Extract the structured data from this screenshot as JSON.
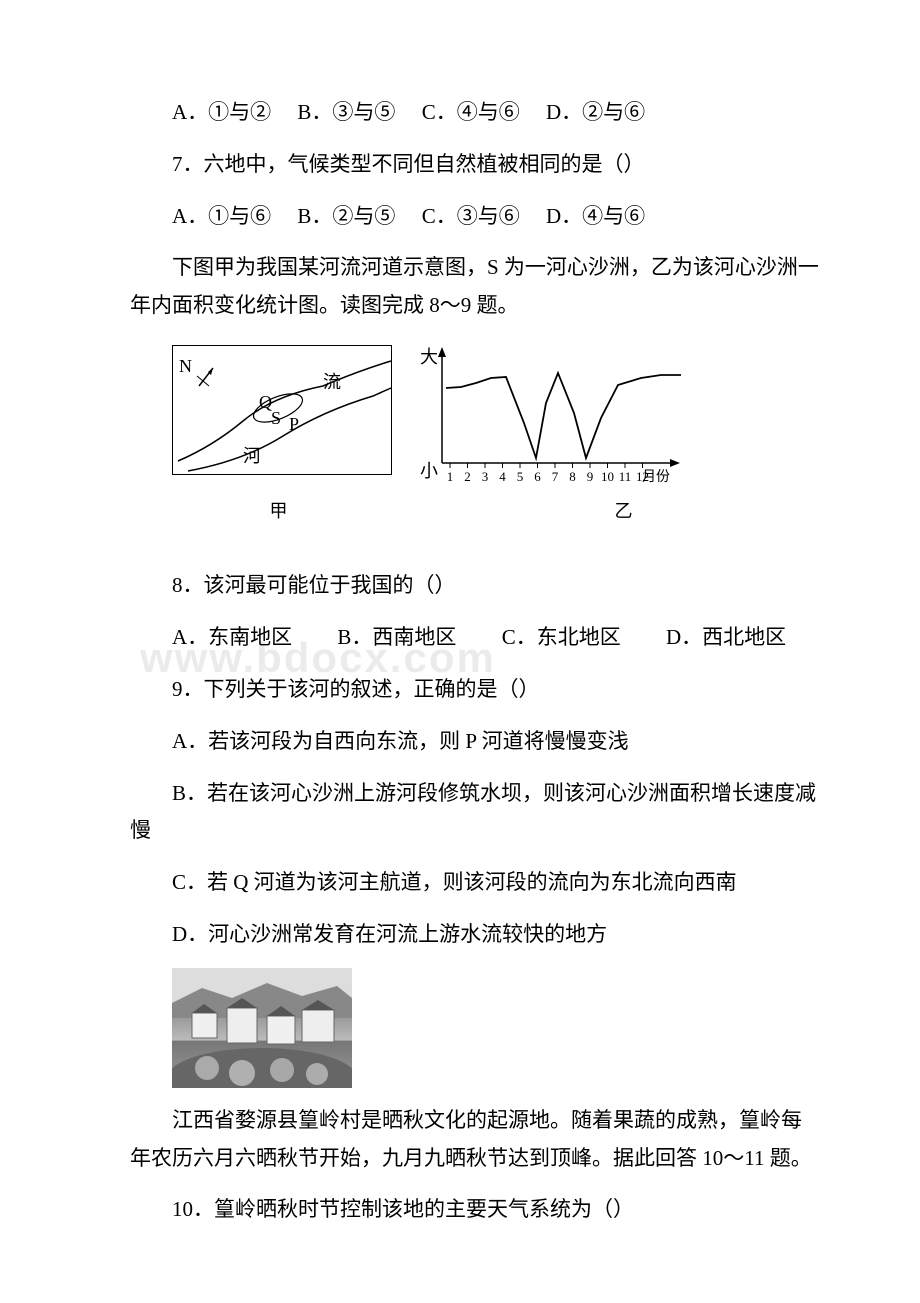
{
  "watermark": "www.bdocx.com",
  "line1": {
    "opts": {
      "a": "A．①与②",
      "b": "B．③与⑤",
      "c": "C．④与⑥",
      "d": "D．②与⑥"
    }
  },
  "q7": {
    "stem": "7．六地中，气候类型不同但自然植被相同的是（）",
    "opts": {
      "a": "A．①与⑥",
      "b": "B．②与⑤",
      "c": "C．③与⑥",
      "d": "D．④与⑥"
    }
  },
  "intro_river": "下图甲为我国某河流河道示意图，S 为一河心沙洲，乙为该河心沙洲一年内面积变化统计图。读图完成 8～9 题。",
  "map": {
    "compass": "N",
    "river_text": "流",
    "he_text": "河",
    "q_label": "Q",
    "s_label": "S",
    "p_label": "P",
    "caption": "甲"
  },
  "chart": {
    "y_top": "大",
    "y_bot": "小",
    "x_labels": [
      "1",
      "2",
      "3",
      "4",
      "5",
      "6",
      "7",
      "8",
      "9",
      "10",
      "11",
      "12"
    ],
    "x_unit": "月份",
    "caption": "乙",
    "curve_points": [
      [
        0,
        25
      ],
      [
        15,
        24
      ],
      [
        30,
        20
      ],
      [
        45,
        15
      ],
      [
        60,
        14
      ],
      [
        78,
        60
      ],
      [
        90,
        95
      ],
      [
        100,
        40
      ],
      [
        112,
        10
      ],
      [
        128,
        50
      ],
      [
        140,
        95
      ],
      [
        155,
        55
      ],
      [
        172,
        22
      ],
      [
        195,
        15
      ],
      [
        215,
        12
      ],
      [
        235,
        12
      ]
    ],
    "axis_color": "#000",
    "curve_color": "#000"
  },
  "q8": {
    "stem": "8．该河最可能位于我国的（）",
    "opts": {
      "a": "A．东南地区",
      "b": "B．西南地区",
      "c": "C．东北地区",
      "d": "D．西北地区"
    }
  },
  "q9": {
    "stem": "9．下列关于该河的叙述，正确的是（）",
    "a": "A．若该河段为自西向东流，则 P 河道将慢慢变浅",
    "b": "B．若在该河心沙洲上游河段修筑水坝，则该河心沙洲面积增长速度减慢",
    "c": "C．若 Q 河道为该河主航道，则该河段的流向为东北流向西南",
    "d": "D．河心沙洲常发育在河流上游水流较快的地方"
  },
  "intro_huangling": "江西省婺源县篁岭村是晒秋文化的起源地。随着果蔬的成熟，篁岭每年农历六月六晒秋节开始，九月九晒秋节达到顶峰。据此回答 10～11 题。",
  "q10": {
    "stem": "10．篁岭晒秋时节控制该地的主要天气系统为（）"
  },
  "colors": {
    "text": "#000000",
    "bg": "#ffffff",
    "border": "#000000"
  }
}
